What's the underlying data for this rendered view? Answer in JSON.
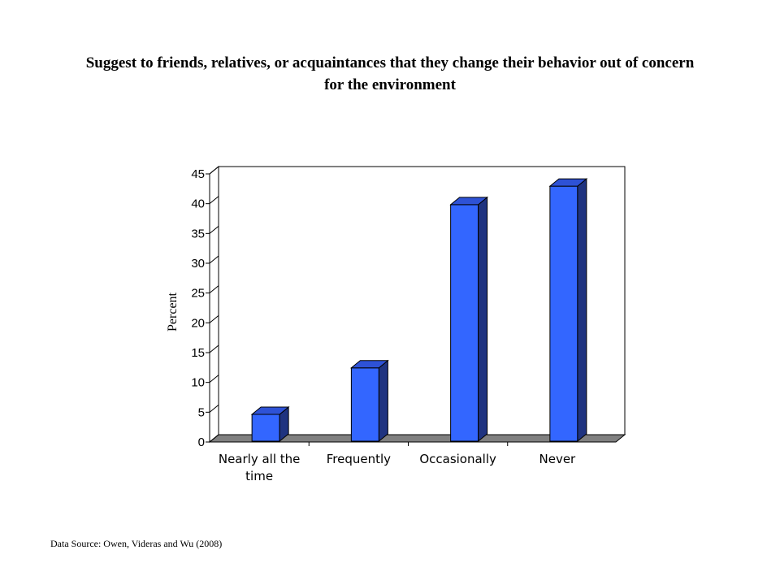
{
  "chart_data": {
    "type": "bar",
    "title_lines": [
      "Suggest to friends, relatives, or acquaintances that they change their behavior out of concern",
      "for the environment"
    ],
    "categories": [
      [
        "Nearly all the",
        "time"
      ],
      [
        "Frequently"
      ],
      [
        "Occasionally"
      ],
      [
        "Never"
      ]
    ],
    "values": [
      4.5,
      12.3,
      39.7,
      42.8
    ],
    "ylabel": "Percent",
    "xlabel": "",
    "ylim": [
      0,
      45
    ],
    "yticks": [
      "0",
      "5",
      "10",
      "15",
      "20",
      "25",
      "30",
      "35",
      "40",
      "45"
    ],
    "bar_style": "3d",
    "colors": {
      "bar_front": "#3366ff",
      "bar_side": "#1f3380",
      "bar_top": "#2e52d6",
      "floor": "#808080"
    }
  },
  "source_note": "Data Source: Owen, Videras and Wu (2008)"
}
